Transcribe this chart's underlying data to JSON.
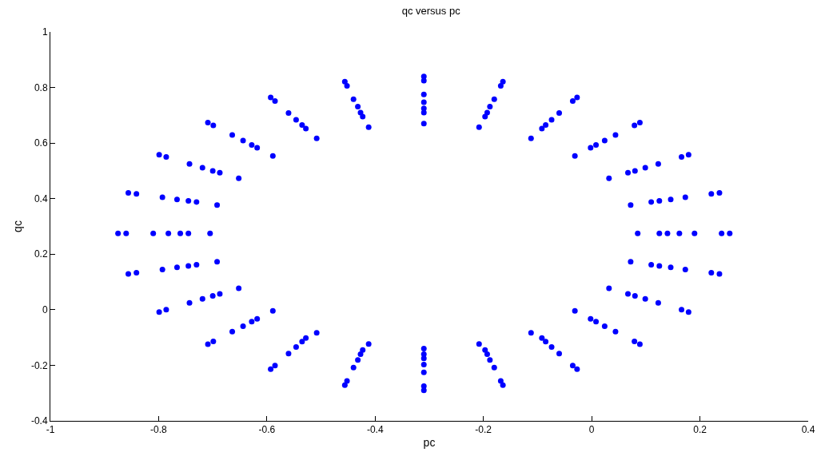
{
  "chart_data": {
    "type": "scatter",
    "title": "qc versus pc",
    "xlabel": "pc",
    "ylabel": "qc",
    "xlim": [
      -1,
      0.4
    ],
    "ylim": [
      -0.4,
      1
    ],
    "xticks": [
      -1,
      -0.8,
      -0.6,
      -0.4,
      -0.2,
      0,
      0.2,
      0.4
    ],
    "yticks": [
      -0.4,
      -0.2,
      0,
      0.2,
      0.4,
      0.6,
      0.8,
      1
    ],
    "grid": false,
    "marker": "circle",
    "series": [
      {
        "color": "#0000ff",
        "x": [
          0.255,
          0.236,
          0.179,
          0.089,
          -0.027,
          -0.164,
          -0.31,
          -0.456,
          -0.593,
          -0.709,
          -0.799,
          -0.856,
          -0.875,
          -0.856,
          -0.799,
          -0.709,
          -0.593,
          -0.456,
          -0.31,
          -0.164,
          -0.027,
          0.089,
          0.179,
          0.236
        ],
        "values": [
          0.275,
          0.421,
          0.558,
          0.674,
          0.764,
          0.821,
          0.84,
          0.821,
          0.764,
          0.674,
          0.558,
          0.421,
          0.275,
          0.129,
          -0.008,
          -0.124,
          -0.214,
          -0.271,
          -0.29,
          -0.271,
          -0.214,
          -0.124,
          -0.008,
          0.129
        ]
      },
      {
        "color": "#0000ff",
        "x": [
          0.24,
          0.221,
          0.166,
          0.079,
          -0.035,
          -0.168,
          -0.31,
          -0.452,
          -0.585,
          -0.699,
          -0.786,
          -0.841,
          -0.86,
          -0.841,
          -0.786,
          -0.699,
          -0.585,
          -0.452,
          -0.31,
          -0.168,
          -0.035,
          0.079,
          0.166,
          0.221
        ],
        "values": [
          0.275,
          0.417,
          0.55,
          0.664,
          0.751,
          0.806,
          0.825,
          0.806,
          0.751,
          0.664,
          0.55,
          0.417,
          0.275,
          0.133,
          0,
          -0.114,
          -0.201,
          -0.256,
          -0.275,
          -0.256,
          -0.201,
          -0.114,
          0,
          0.133
        ]
      },
      {
        "color": "#0000ff",
        "x": [
          0.19,
          0.173,
          0.123,
          0.044,
          -0.06,
          -0.18,
          -0.31,
          -0.44,
          -0.56,
          -0.664,
          -0.743,
          -0.793,
          -0.81,
          -0.793,
          -0.743,
          -0.664,
          -0.56,
          -0.44,
          -0.31,
          -0.18,
          -0.06,
          0.044,
          0.123,
          0.173
        ],
        "values": [
          0.275,
          0.405,
          0.525,
          0.629,
          0.708,
          0.758,
          0.775,
          0.758,
          0.708,
          0.629,
          0.525,
          0.405,
          0.275,
          0.145,
          0.025,
          -0.079,
          -0.158,
          -0.208,
          -0.225,
          -0.208,
          -0.158,
          -0.079,
          0.025,
          0.145
        ]
      },
      {
        "color": "#0000ff",
        "x": [
          0.162,
          0.146,
          0.099,
          0.024,
          -0.074,
          -0.188,
          -0.31,
          -0.432,
          -0.546,
          -0.644,
          -0.719,
          -0.766,
          -0.782,
          -0.766,
          -0.719,
          -0.644,
          -0.546,
          -0.432,
          -0.31,
          -0.188,
          -0.074,
          0.024,
          0.099,
          0.146
        ],
        "values": [
          0.275,
          0.397,
          0.511,
          0.609,
          0.684,
          0.731,
          0.747,
          0.731,
          0.684,
          0.609,
          0.511,
          0.397,
          0.275,
          0.153,
          0.039,
          -0.059,
          -0.134,
          -0.181,
          -0.197,
          -0.181,
          -0.134,
          -0.059,
          0.039,
          0.153
        ]
      },
      {
        "color": "#0000ff",
        "x": [
          0.14,
          0.125,
          0.08,
          0.008,
          -0.085,
          -0.193,
          -0.31,
          -0.427,
          -0.535,
          -0.628,
          -0.7,
          -0.745,
          -0.76,
          -0.745,
          -0.7,
          -0.628,
          -0.535,
          -0.427,
          -0.31,
          -0.193,
          -0.085,
          0.008,
          0.08,
          0.125
        ],
        "values": [
          0.275,
          0.392,
          0.5,
          0.593,
          0.665,
          0.71,
          0.725,
          0.71,
          0.665,
          0.593,
          0.5,
          0.392,
          0.275,
          0.158,
          0.05,
          -0.043,
          -0.115,
          -0.16,
          -0.175,
          -0.16,
          -0.115,
          -0.043,
          0.05,
          0.158
        ]
      },
      {
        "color": "#0000ff",
        "x": [
          0.125,
          0.11,
          0.067,
          -0.002,
          -0.092,
          -0.197,
          -0.31,
          -0.423,
          -0.528,
          -0.618,
          -0.687,
          -0.73,
          -0.745,
          -0.73,
          -0.687,
          -0.618,
          -0.528,
          -0.423,
          -0.31,
          -0.197,
          -0.092,
          -0.002,
          0.067,
          0.11
        ],
        "values": [
          0.275,
          0.388,
          0.493,
          0.583,
          0.652,
          0.695,
          0.71,
          0.695,
          0.652,
          0.583,
          0.493,
          0.388,
          0.275,
          0.162,
          0.057,
          -0.033,
          -0.102,
          -0.145,
          -0.16,
          -0.145,
          -0.102,
          -0.033,
          0.057,
          0.162
        ]
      },
      {
        "color": "#0000ff",
        "x": [
          0.085,
          0.072,
          0.032,
          -0.031,
          -0.112,
          -0.208,
          -0.31,
          -0.412,
          -0.508,
          -0.589,
          -0.652,
          -0.692,
          -0.705,
          -0.692,
          -0.652,
          -0.589,
          -0.508,
          -0.412,
          -0.31,
          -0.208,
          -0.112,
          -0.031,
          0.032,
          0.072
        ],
        "values": [
          0.275,
          0.377,
          0.473,
          0.554,
          0.617,
          0.657,
          0.67,
          0.657,
          0.617,
          0.554,
          0.473,
          0.377,
          0.275,
          0.173,
          0.077,
          -0.004,
          -0.083,
          -0.123,
          -0.14,
          -0.123,
          -0.083,
          -0.004,
          0.077,
          0.173
        ]
      }
    ]
  }
}
